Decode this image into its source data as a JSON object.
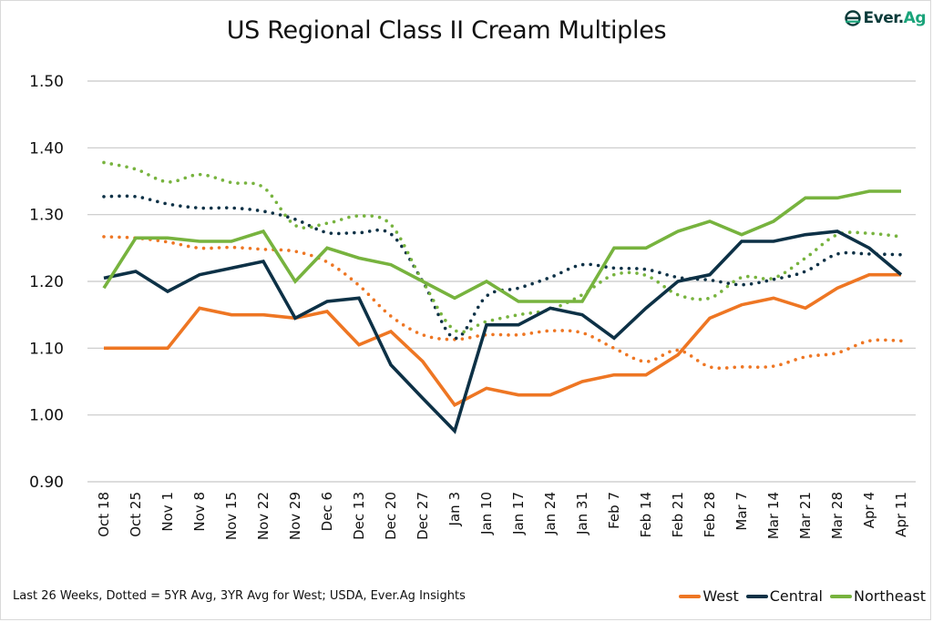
{
  "brand": {
    "logo_text_main": "Ever.",
    "logo_text_accent": "Ag"
  },
  "footnote": "Last 26 Weeks, Dotted = 5YR Avg, 3YR Avg for West; USDA, Ever.Ag Insights",
  "chart_data": {
    "type": "line",
    "title": "US Regional Class II Cream Multiples",
    "xlabel": "",
    "ylabel": "",
    "ylim": [
      0.9,
      1.5
    ],
    "yticks": [
      "0.90",
      "1.00",
      "1.10",
      "1.20",
      "1.30",
      "1.40",
      "1.50"
    ],
    "grid": true,
    "legend_position": "bottom-right",
    "categories": [
      "Oct 18",
      "Oct 25",
      "Nov 1",
      "Nov 8",
      "Nov 15",
      "Nov 22",
      "Nov 29",
      "Dec 6",
      "Dec 13",
      "Dec 20",
      "Dec 27",
      "Jan 3",
      "Jan 10",
      "Jan 17",
      "Jan 24",
      "Jan 31",
      "Feb 7",
      "Feb 14",
      "Feb 21",
      "Feb 28",
      "Mar 7",
      "Mar 14",
      "Mar 21",
      "Mar 28",
      "Apr 4",
      "Apr 11"
    ],
    "series": [
      {
        "name": "West",
        "color": "#ee7623",
        "style": "solid",
        "in_legend": true,
        "values": [
          1.1,
          1.1,
          1.1,
          1.16,
          1.15,
          1.15,
          1.145,
          1.155,
          1.105,
          1.125,
          1.08,
          1.015,
          1.04,
          1.03,
          1.03,
          1.05,
          1.06,
          1.06,
          1.09,
          1.145,
          1.165,
          1.175,
          1.16,
          1.19,
          1.21,
          1.21
        ]
      },
      {
        "name": "Central",
        "color": "#0d3146",
        "style": "solid",
        "in_legend": true,
        "values": [
          1.205,
          1.215,
          1.185,
          1.21,
          1.22,
          1.23,
          1.145,
          1.17,
          1.175,
          1.075,
          1.025,
          0.976,
          1.135,
          1.135,
          1.16,
          1.15,
          1.115,
          1.16,
          1.2,
          1.21,
          1.26,
          1.26,
          1.27,
          1.275,
          1.25,
          1.21
        ]
      },
      {
        "name": "Northeast",
        "color": "#77b33e",
        "style": "solid",
        "in_legend": true,
        "values": [
          1.19,
          1.265,
          1.265,
          1.26,
          1.26,
          1.275,
          1.2,
          1.25,
          1.235,
          1.225,
          1.2,
          1.175,
          1.2,
          1.17,
          1.17,
          1.17,
          1.25,
          1.25,
          1.275,
          1.29,
          1.27,
          1.29,
          1.325,
          1.325,
          1.335,
          1.335
        ]
      },
      {
        "name": "West 3YR Avg",
        "color": "#ee7623",
        "style": "dotted",
        "in_legend": false,
        "values": [
          1.267,
          1.265,
          1.259,
          1.25,
          1.251,
          1.248,
          1.245,
          1.229,
          1.194,
          1.148,
          1.12,
          1.113,
          1.12,
          1.12,
          1.126,
          1.123,
          1.1,
          1.08,
          1.097,
          1.072,
          1.072,
          1.073,
          1.087,
          1.093,
          1.111,
          1.111
        ]
      },
      {
        "name": "Central 5YR Avg",
        "color": "#0d3146",
        "style": "dotted",
        "in_legend": false,
        "values": [
          1.327,
          1.327,
          1.316,
          1.31,
          1.31,
          1.305,
          1.293,
          1.273,
          1.273,
          1.271,
          1.2,
          1.115,
          1.178,
          1.19,
          1.206,
          1.225,
          1.22,
          1.218,
          1.206,
          1.202,
          1.195,
          1.203,
          1.215,
          1.241,
          1.241,
          1.24
        ]
      },
      {
        "name": "Northeast 5YR Avg",
        "color": "#77b33e",
        "style": "dotted",
        "in_legend": false,
        "values": [
          1.378,
          1.368,
          1.349,
          1.36,
          1.348,
          1.341,
          1.284,
          1.287,
          1.298,
          1.285,
          1.2,
          1.127,
          1.14,
          1.15,
          1.158,
          1.18,
          1.21,
          1.209,
          1.18,
          1.175,
          1.206,
          1.205,
          1.235,
          1.27,
          1.272,
          1.267
        ]
      }
    ]
  }
}
